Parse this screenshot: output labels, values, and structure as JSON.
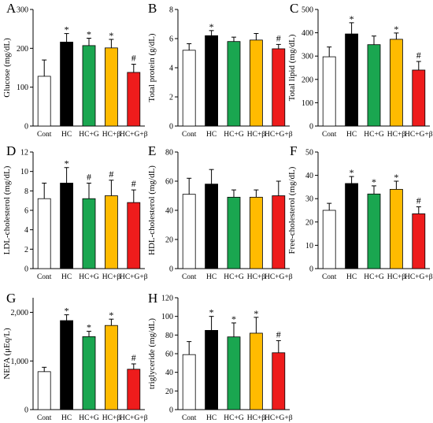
{
  "colors": {
    "Cont": "#ffffff",
    "HC": "#000000",
    "HC+G": "#1aa650",
    "HC+β": "#ffbb00",
    "HC+G+β": "#ee1c1c"
  },
  "chart_data": [
    {
      "panel": "A",
      "type": "bar",
      "ylabel": "Glucose (mg/dL)",
      "categories": [
        "Cont",
        "HC",
        "HC+G",
        "HC+β",
        "HC+G+β"
      ],
      "values": [
        128,
        216,
        207,
        201,
        138
      ],
      "errors": [
        42,
        22,
        19,
        22,
        21
      ],
      "markers": [
        "",
        "*",
        "*",
        "*",
        "#"
      ],
      "ylim": [
        0,
        300
      ],
      "yticks": [
        0,
        100,
        200,
        300
      ],
      "ytick_labels": [
        "0",
        "100",
        "200",
        "300"
      ]
    },
    {
      "panel": "B",
      "type": "bar",
      "ylabel": "Total protein (g/dL)",
      "categories": [
        "Cont",
        "HC",
        "HC+G",
        "HC+β",
        "HC+G+β"
      ],
      "values": [
        5.2,
        6.2,
        5.8,
        5.9,
        5.3
      ],
      "errors": [
        0.45,
        0.35,
        0.3,
        0.45,
        0.3
      ],
      "markers": [
        "",
        "*",
        "",
        "",
        "#"
      ],
      "ylim": [
        0,
        8
      ],
      "yticks": [
        0,
        2,
        4,
        6,
        8
      ],
      "ytick_labels": [
        "0",
        "2",
        "4",
        "6",
        "8"
      ]
    },
    {
      "panel": "C",
      "type": "bar",
      "ylabel": "Total lipid (mg/dL)",
      "categories": [
        "Cont",
        "HC",
        "HC+G",
        "HC+β",
        "HC+G+β"
      ],
      "values": [
        297,
        395,
        349,
        372,
        240
      ],
      "errors": [
        42,
        48,
        37,
        27,
        37
      ],
      "markers": [
        "",
        "*",
        "",
        "*",
        "#"
      ],
      "ylim": [
        0,
        500
      ],
      "yticks": [
        0,
        100,
        200,
        300,
        400,
        500
      ],
      "ytick_labels": [
        "0",
        "100",
        "200",
        "300",
        "400",
        "500"
      ]
    },
    {
      "panel": "D",
      "type": "bar",
      "ylabel": "LDL-cholesterol (mg/dL)",
      "categories": [
        "Cont",
        "HC",
        "HC+G",
        "HC+β",
        "HC+G+β"
      ],
      "values": [
        7.2,
        8.8,
        7.2,
        7.5,
        6.8
      ],
      "errors": [
        1.6,
        1.6,
        1.6,
        1.6,
        1.3
      ],
      "markers": [
        "",
        "*",
        "#",
        "#",
        "#"
      ],
      "ylim": [
        0,
        12
      ],
      "yticks": [
        0,
        2,
        4,
        6,
        8,
        10,
        12
      ],
      "ytick_labels": [
        "0",
        "2",
        "4",
        "6",
        "8",
        "10",
        "12"
      ]
    },
    {
      "panel": "E",
      "type": "bar",
      "ylabel": "HDL-cholesterol (mg/dL)",
      "categories": [
        "Cont",
        "HC",
        "HC+G",
        "HC+β",
        "HC+G+β"
      ],
      "values": [
        51,
        58,
        49,
        49,
        50
      ],
      "errors": [
        11,
        10,
        5,
        5,
        10
      ],
      "markers": [
        "",
        "",
        "",
        "",
        ""
      ],
      "ylim": [
        0,
        80
      ],
      "yticks": [
        0,
        20,
        40,
        60,
        80
      ],
      "ytick_labels": [
        "0",
        "20",
        "40",
        "60",
        "80"
      ]
    },
    {
      "panel": "F",
      "type": "bar",
      "ylabel": "Free-cholesterol (mg/dL)",
      "categories": [
        "Cont",
        "HC",
        "HC+G",
        "HC+β",
        "HC+G+β"
      ],
      "values": [
        25,
        36.5,
        32,
        34,
        23.5
      ],
      "errors": [
        3,
        3,
        3.5,
        3.5,
        3
      ],
      "markers": [
        "",
        "*",
        "*",
        "*",
        "#"
      ],
      "ylim": [
        0,
        50
      ],
      "yticks": [
        0,
        10,
        20,
        30,
        40,
        50
      ],
      "ytick_labels": [
        "0",
        "10",
        "20",
        "30",
        "40",
        "50"
      ]
    },
    {
      "panel": "G",
      "type": "bar",
      "ylabel": "NEFA (μEq/L)",
      "categories": [
        "Cont",
        "HC",
        "HC+G",
        "HC+β",
        "HC+G+β"
      ],
      "values": [
        780,
        1830,
        1500,
        1730,
        830
      ],
      "errors": [
        90,
        120,
        110,
        130,
        110
      ],
      "markers": [
        "",
        "*",
        "*",
        "*",
        "#"
      ],
      "ylim": [
        0,
        2300
      ],
      "yticks": [
        0,
        1000,
        2000
      ],
      "ytick_labels": [
        "0",
        "1,000",
        "2,000"
      ]
    },
    {
      "panel": "H",
      "type": "bar",
      "ylabel": "triglyceride (mg/dL)",
      "categories": [
        "Cont",
        "HC",
        "HC+G",
        "HC+β",
        "HC+G+β"
      ],
      "values": [
        59,
        85,
        78,
        82,
        61
      ],
      "errors": [
        14,
        15,
        15,
        17,
        13
      ],
      "markers": [
        "",
        "*",
        "*",
        "*",
        "#"
      ],
      "ylim": [
        0,
        120
      ],
      "yticks": [
        0,
        20,
        40,
        60,
        80,
        100,
        120
      ],
      "ytick_labels": [
        "0",
        "20",
        "40",
        "60",
        "80",
        "100",
        "120"
      ]
    }
  ]
}
